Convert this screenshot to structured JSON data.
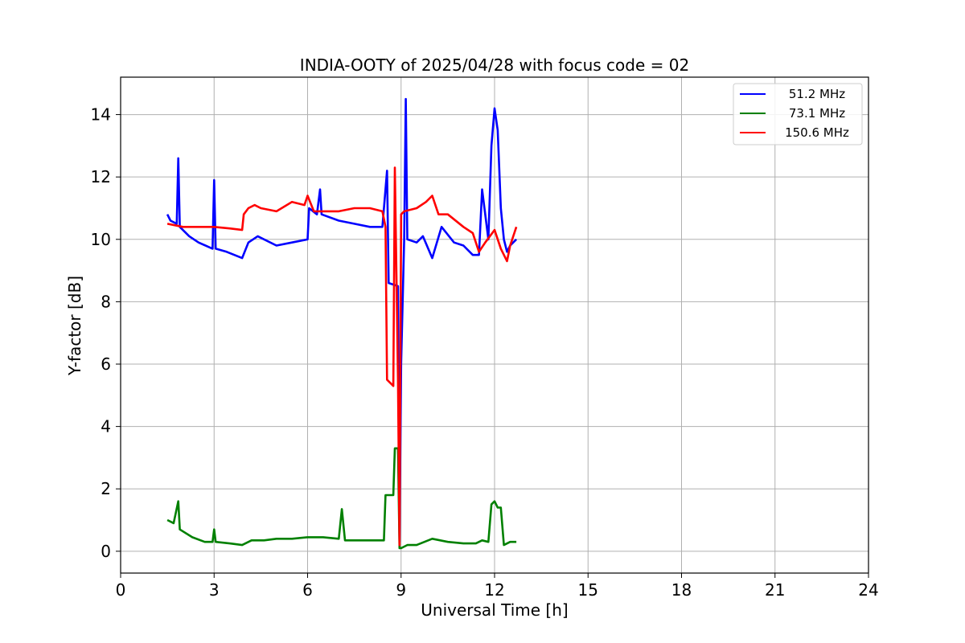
{
  "chart_data": {
    "type": "line",
    "title": "INDIA-OOTY of 2025/04/28 with focus code = 02",
    "xlabel": "Universal Time [h]",
    "ylabel": "Y-factor [dB]",
    "xlim": [
      0,
      24
    ],
    "ylim": [
      -0.7,
      15.2
    ],
    "xticks": [
      0,
      3,
      6,
      9,
      12,
      15,
      18,
      21,
      24
    ],
    "yticks": [
      0,
      2,
      4,
      6,
      8,
      10,
      12,
      14
    ],
    "grid": true,
    "legend_position": "top-right",
    "series": [
      {
        "name": "51.2 MHz",
        "color": "#0000ff",
        "x": [
          1.5,
          1.6,
          1.8,
          1.85,
          1.9,
          2.2,
          2.5,
          2.95,
          3.0,
          3.05,
          3.4,
          3.9,
          4.1,
          4.4,
          5.0,
          5.5,
          6.0,
          6.05,
          6.3,
          6.4,
          6.45,
          7.0,
          7.5,
          8.0,
          8.4,
          8.55,
          8.6,
          8.9,
          8.95,
          9.0,
          9.1,
          9.15,
          9.2,
          9.5,
          9.7,
          10.0,
          10.3,
          10.7,
          11.0,
          11.3,
          11.5,
          11.6,
          11.8,
          11.9,
          12.0,
          12.1,
          12.2,
          12.3,
          12.4,
          12.5,
          12.7
        ],
        "y": [
          10.8,
          10.6,
          10.5,
          12.6,
          10.4,
          10.1,
          9.9,
          9.7,
          11.9,
          9.7,
          9.6,
          9.4,
          9.9,
          10.1,
          9.8,
          9.9,
          10.0,
          11.0,
          10.8,
          11.6,
          10.8,
          10.6,
          10.5,
          10.4,
          10.4,
          12.2,
          8.6,
          8.5,
          0.3,
          6.0,
          10.0,
          14.5,
          10.0,
          9.9,
          10.1,
          9.4,
          10.4,
          9.9,
          9.8,
          9.5,
          9.5,
          11.6,
          10.0,
          13.0,
          14.2,
          13.5,
          11.0,
          10.0,
          9.6,
          9.8,
          10.0
        ]
      },
      {
        "name": "73.1 MHz",
        "color": "#008000",
        "x": [
          1.5,
          1.7,
          1.85,
          1.9,
          2.3,
          2.7,
          2.95,
          3.0,
          3.05,
          3.5,
          3.9,
          4.2,
          4.6,
          5.0,
          5.5,
          6.0,
          6.5,
          7.0,
          7.1,
          7.2,
          7.6,
          8.0,
          8.45,
          8.5,
          8.75,
          8.8,
          8.9,
          8.95,
          9.0,
          9.2,
          9.5,
          10.0,
          10.5,
          11.0,
          11.4,
          11.6,
          11.8,
          11.9,
          12.0,
          12.1,
          12.2,
          12.3,
          12.5,
          12.7
        ],
        "y": [
          1.0,
          0.9,
          1.6,
          0.7,
          0.45,
          0.3,
          0.3,
          0.7,
          0.3,
          0.25,
          0.2,
          0.35,
          0.35,
          0.4,
          0.4,
          0.45,
          0.45,
          0.4,
          1.35,
          0.35,
          0.35,
          0.35,
          0.35,
          1.8,
          1.8,
          3.3,
          3.3,
          0.1,
          0.1,
          0.2,
          0.2,
          0.4,
          0.3,
          0.25,
          0.25,
          0.35,
          0.3,
          1.5,
          1.6,
          1.4,
          1.4,
          0.2,
          0.3,
          0.3
        ]
      },
      {
        "name": "150.6 MHz",
        "color": "#ff0000",
        "x": [
          1.5,
          2.0,
          2.5,
          3.0,
          3.5,
          3.9,
          3.95,
          4.1,
          4.3,
          4.5,
          5.0,
          5.5,
          5.9,
          6.0,
          6.2,
          6.5,
          7.0,
          7.5,
          8.0,
          8.4,
          8.5,
          8.55,
          8.75,
          8.8,
          8.9,
          8.95,
          9.0,
          9.1,
          9.5,
          9.8,
          10.0,
          10.2,
          10.5,
          11.0,
          11.3,
          11.5,
          11.7,
          12.0,
          12.2,
          12.4,
          12.5,
          12.7
        ],
        "y": [
          10.5,
          10.4,
          10.4,
          10.4,
          10.35,
          10.3,
          10.8,
          11.0,
          11.1,
          11.0,
          10.9,
          11.2,
          11.1,
          11.4,
          10.9,
          10.9,
          10.9,
          11.0,
          11.0,
          10.9,
          10.4,
          5.5,
          5.3,
          12.3,
          5.5,
          0.2,
          10.8,
          10.9,
          11.0,
          11.2,
          11.4,
          10.8,
          10.8,
          10.4,
          10.2,
          9.6,
          9.9,
          10.3,
          9.7,
          9.3,
          9.8,
          10.4
        ]
      }
    ]
  }
}
